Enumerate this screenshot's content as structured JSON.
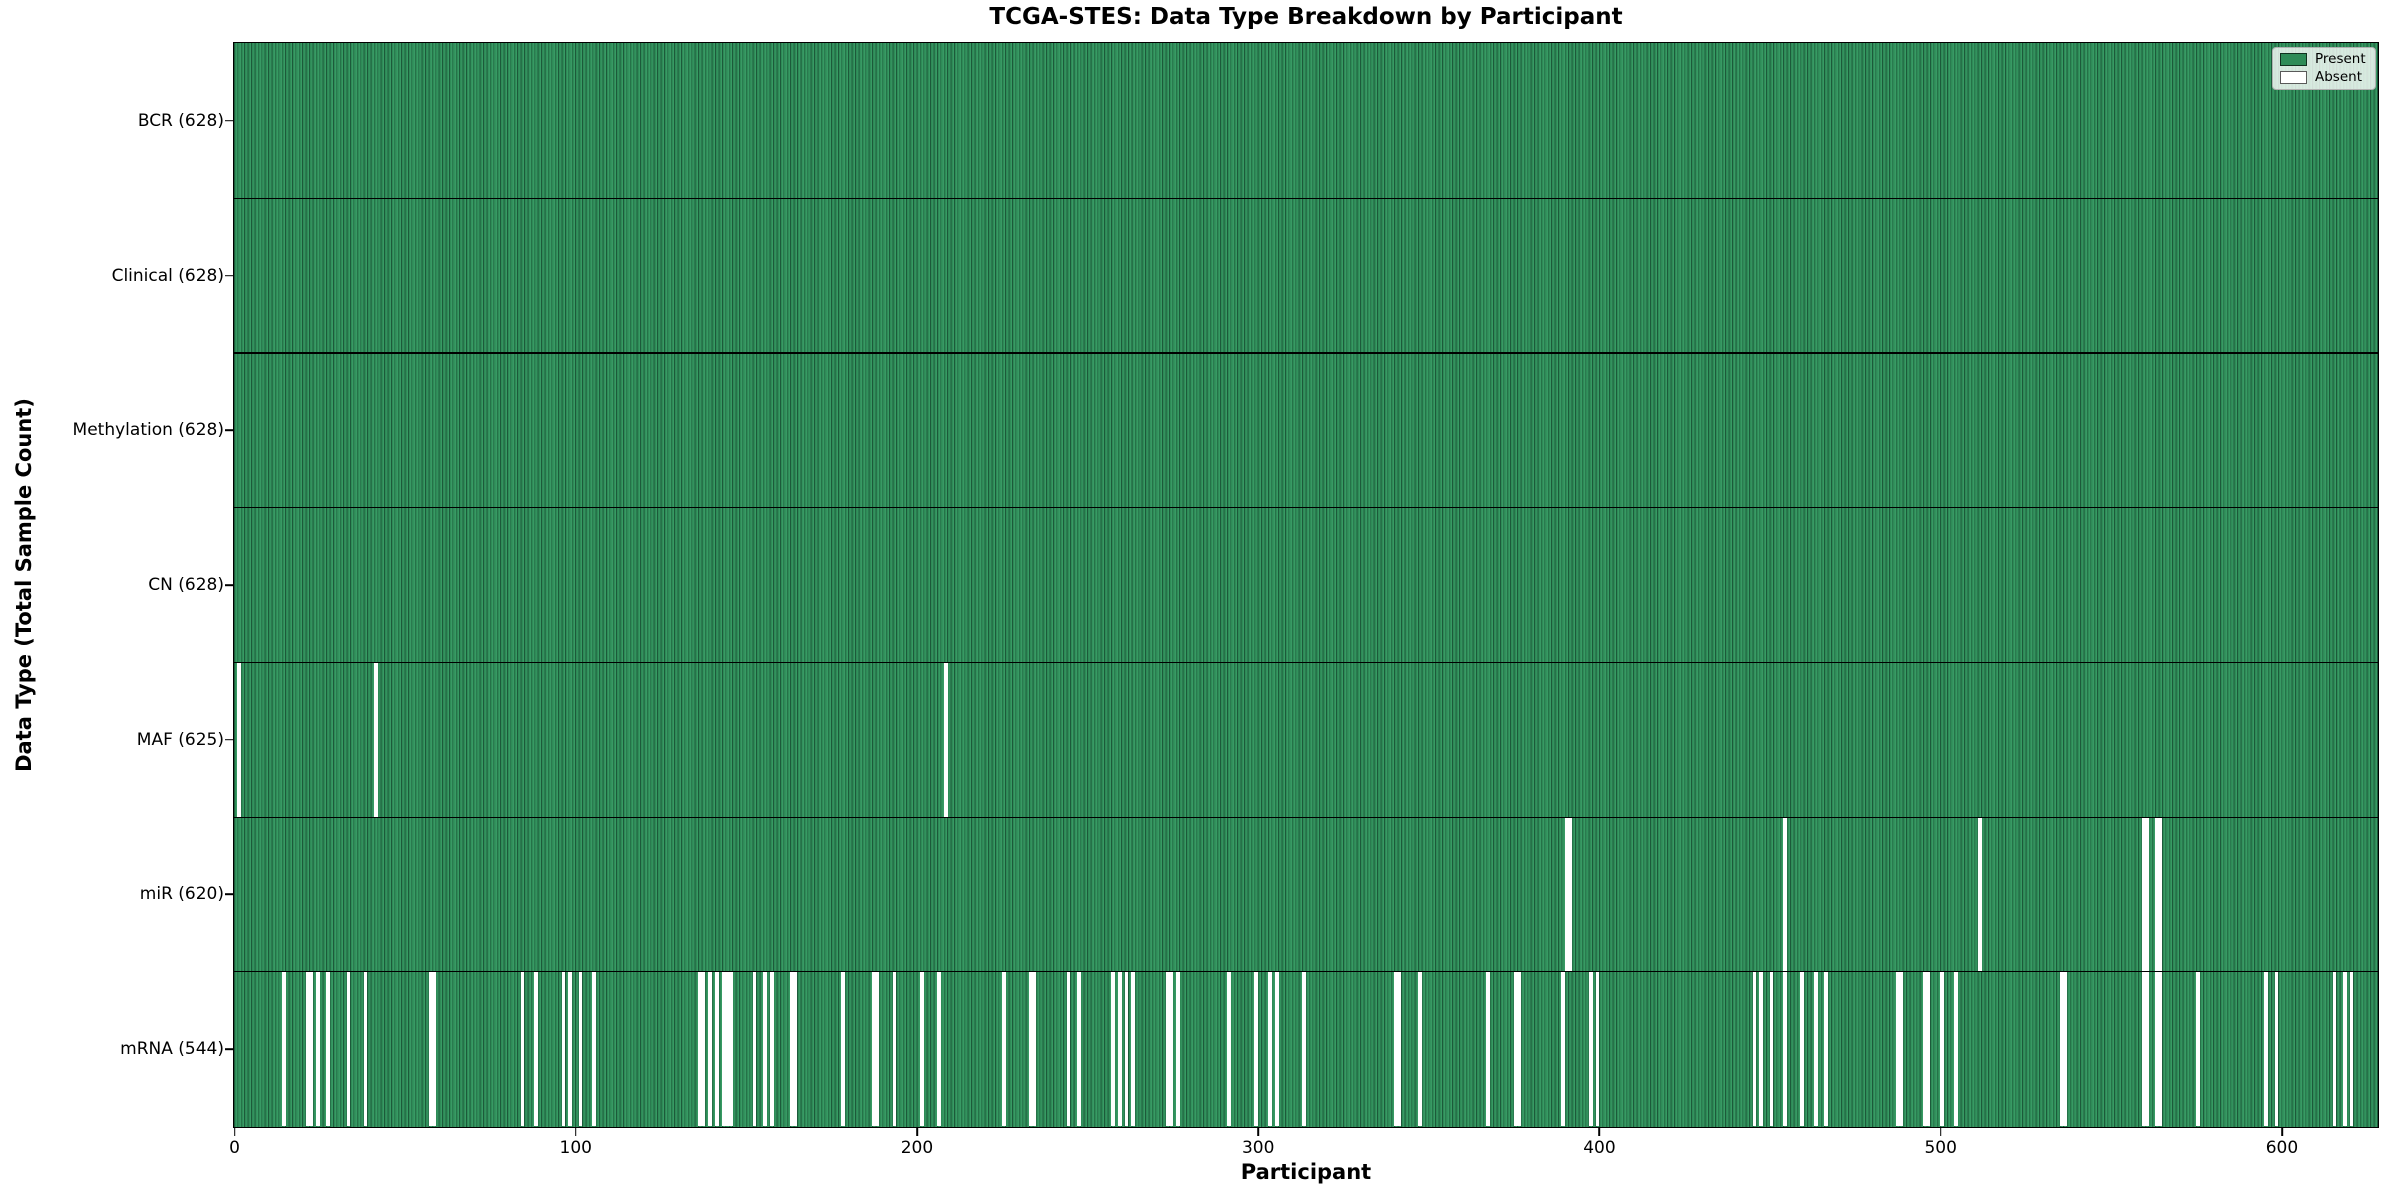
{
  "title": "TCGA-STES: Data Type Breakdown by Participant",
  "x_axis": {
    "label": "Participant",
    "ticks": [
      "0",
      "100",
      "200",
      "300",
      "400",
      "500",
      "600"
    ],
    "tick_values": [
      0,
      100,
      200,
      300,
      400,
      500,
      600
    ]
  },
  "y_axis": {
    "label": "Data Type (Total Sample Count)"
  },
  "legend": {
    "present_label": "Present",
    "absent_label": "Absent"
  },
  "colors": {
    "present": "#2e8b57",
    "absent": "#ffffff",
    "bar_edge": "#1c5a3a",
    "row_separator": "#000000",
    "plot_border": "#000000"
  },
  "chart_data": {
    "type": "heatmap",
    "title": "TCGA-STES: Data Type Breakdown by Participant",
    "xlabel": "Participant",
    "ylabel": "Data Type (Total Sample Count)",
    "x_range": [
      0,
      628
    ],
    "n_participants": 628,
    "legend_position": "upper right",
    "grid": false,
    "rows": [
      {
        "label": "BCR (628)",
        "data_type": "BCR",
        "present_count": 628,
        "absent_participants": []
      },
      {
        "label": "Clinical (628)",
        "data_type": "Clinical",
        "present_count": 628,
        "absent_participants": []
      },
      {
        "label": "Methylation (628)",
        "data_type": "Methylation",
        "present_count": 628,
        "absent_participants": []
      },
      {
        "label": "CN (628)",
        "data_type": "CN",
        "present_count": 628,
        "absent_participants": []
      },
      {
        "label": "MAF (625)",
        "data_type": "MAF",
        "present_count": 625,
        "absent_participants": [
          1,
          41,
          208
        ]
      },
      {
        "label": "miR (620)",
        "data_type": "miR",
        "present_count": 620,
        "absent_participants": [
          390,
          391,
          454,
          511,
          559,
          560,
          563,
          564
        ]
      },
      {
        "label": "mRNA (544)",
        "data_type": "mRNA",
        "present_count": 544,
        "absent_participants": [
          14,
          21,
          22,
          24,
          27,
          33,
          38,
          57,
          58,
          84,
          88,
          96,
          98,
          101,
          105,
          136,
          137,
          139,
          141,
          143,
          144,
          145,
          152,
          155,
          157,
          163,
          164,
          178,
          187,
          188,
          193,
          201,
          206,
          225,
          233,
          234,
          244,
          247,
          257,
          259,
          261,
          263,
          273,
          274,
          276,
          291,
          299,
          303,
          305,
          313,
          340,
          341,
          347,
          367,
          375,
          376,
          389,
          397,
          399,
          445,
          447,
          450,
          454,
          459,
          463,
          466,
          487,
          488,
          495,
          496,
          500,
          504,
          535,
          536,
          559,
          560,
          563,
          564,
          575,
          595,
          598,
          615,
          618,
          620
        ]
      }
    ]
  }
}
